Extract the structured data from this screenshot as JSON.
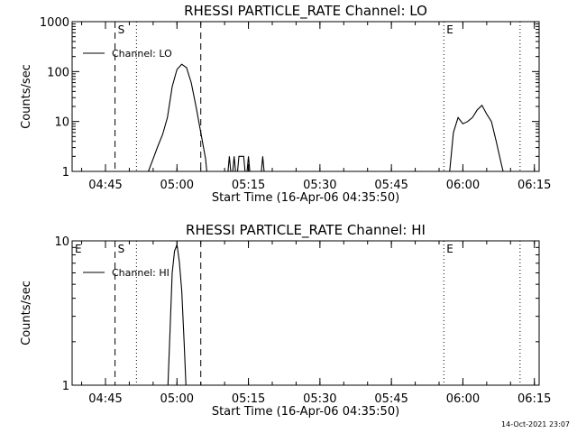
{
  "footer": {
    "timestamp": "14-Oct-2021 23:07"
  },
  "chart_data": [
    {
      "type": "line",
      "title": "RHESSI PARTICLE_RATE Channel: LO",
      "xlabel": "Start Time (16-Apr-06 04:35:50)",
      "ylabel": "Counts/sec",
      "yscale": "log",
      "xlim": [
        "04:38",
        "06:16"
      ],
      "ylim": [
        1,
        1000
      ],
      "x_ticks": [
        "04:45",
        "05:00",
        "05:15",
        "05:30",
        "05:45",
        "06:00",
        "06:15"
      ],
      "y_ticks": [
        "1",
        "10",
        "100",
        "1000"
      ],
      "grid": false,
      "legend_position": "top-left",
      "series": [
        {
          "name": "Channel: LO",
          "points": [
            [
              "04:53",
              0.6
            ],
            [
              "04:54",
              1.0
            ],
            [
              "04:55",
              1.8
            ],
            [
              "04:56",
              3.2
            ],
            [
              "04:57",
              5.5
            ],
            [
              "04:58",
              12
            ],
            [
              "04:59",
              50
            ],
            [
              "05:00",
              110
            ],
            [
              "05:01",
              140
            ],
            [
              "05:02",
              120
            ],
            [
              "05:03",
              60
            ],
            [
              "05:04",
              20
            ],
            [
              "05:05",
              6
            ],
            [
              "05:06",
              1.8
            ],
            [
              "05:06.5",
              0.6
            ],
            [
              "05:10.5",
              0.6
            ],
            [
              "05:11",
              2
            ],
            [
              "05:11.5",
              0.6
            ],
            [
              "05:12",
              2
            ],
            [
              "05:12.5",
              0.6
            ],
            [
              "05:13",
              2
            ],
            [
              "05:14",
              2
            ],
            [
              "05:14.5",
              0.6
            ],
            [
              "05:15",
              2
            ],
            [
              "05:15.5",
              0.6
            ],
            [
              "05:17.5",
              0.6
            ],
            [
              "05:18",
              2
            ],
            [
              "05:18.5",
              0.6
            ],
            [
              "05:57",
              0.6
            ],
            [
              "05:58",
              6
            ],
            [
              "05:59",
              12
            ],
            [
              "06:00",
              9
            ],
            [
              "06:01",
              10
            ],
            [
              "06:02",
              12
            ],
            [
              "06:03",
              17
            ],
            [
              "06:04",
              21
            ],
            [
              "06:05",
              14
            ],
            [
              "06:06",
              10
            ],
            [
              "06:07",
              4
            ],
            [
              "06:08",
              1.5
            ],
            [
              "06:09",
              0.6
            ]
          ]
        }
      ],
      "annotations": [
        {
          "text": "S",
          "x": "04:47"
        },
        {
          "text": "E",
          "x": "05:56"
        }
      ],
      "vertical_lines": {
        "dashed": [
          "04:47",
          "05:05"
        ],
        "dotted": [
          "04:51.5",
          "05:56",
          "06:12"
        ]
      }
    },
    {
      "type": "line",
      "title": "RHESSI PARTICLE_RATE Channel: HI",
      "xlabel": "Start Time (16-Apr-06 04:35:50)",
      "ylabel": "Counts/sec",
      "yscale": "log",
      "xlim": [
        "04:38",
        "06:16"
      ],
      "ylim": [
        1,
        10
      ],
      "x_ticks": [
        "04:45",
        "05:00",
        "05:15",
        "05:30",
        "05:45",
        "06:00",
        "06:15"
      ],
      "y_ticks": [
        "1",
        "10"
      ],
      "grid": false,
      "legend_position": "top-left",
      "series": [
        {
          "name": "Channel: HI",
          "points": [
            [
              "04:58",
              0.8
            ],
            [
              "04:58.5",
              2.2
            ],
            [
              "04:59",
              6
            ],
            [
              "04:59.5",
              8.5
            ],
            [
              "05:00",
              9.4
            ],
            [
              "05:00.5",
              7.2
            ],
            [
              "05:01",
              4.5
            ],
            [
              "05:01.5",
              2.0
            ],
            [
              "05:02",
              0.8
            ]
          ]
        }
      ],
      "annotations": [
        {
          "text": "E",
          "x": "04:38"
        },
        {
          "text": "S",
          "x": "04:47"
        },
        {
          "text": "E",
          "x": "05:56"
        }
      ],
      "vertical_lines": {
        "dashed": [
          "04:47",
          "05:05"
        ],
        "dotted": [
          "04:51.5",
          "05:56",
          "06:12"
        ]
      }
    }
  ]
}
